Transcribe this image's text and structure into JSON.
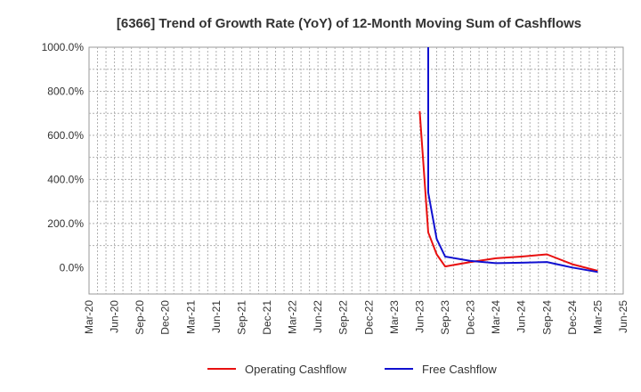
{
  "chart_data": {
    "type": "line",
    "title": "[6366]  Trend of Growth Rate (YoY) of 12-Month Moving Sum of Cashflows",
    "xlabel": "",
    "ylabel": "",
    "ylim": [
      -120,
      1000
    ],
    "y_ticks": [
      0,
      200,
      400,
      600,
      800,
      1000
    ],
    "y_tick_labels": [
      "0.0%",
      "200.0%",
      "400.0%",
      "600.0%",
      "800.0%",
      "1000.0%"
    ],
    "x_tick_labels": [
      "Mar-20",
      "Jun-20",
      "Sep-20",
      "Dec-20",
      "Mar-21",
      "Jun-21",
      "Sep-21",
      "Dec-21",
      "Mar-22",
      "Jun-22",
      "Sep-22",
      "Dec-22",
      "Mar-23",
      "Jun-23",
      "Sep-23",
      "Dec-23",
      "Mar-24",
      "Jun-24",
      "Sep-24",
      "Dec-24",
      "Mar-25",
      "Jun-25"
    ],
    "grid": true,
    "legend_position": "bottom",
    "series": [
      {
        "name": "Operating Cashflow",
        "color": "#e81010",
        "points": [
          {
            "x": "Jun-23",
            "y": 710
          },
          {
            "x": "Jul-23",
            "y": 160
          },
          {
            "x": "Aug-23",
            "y": 60
          },
          {
            "x": "Sep-23",
            "y": 5
          },
          {
            "x": "Dec-23",
            "y": 25
          },
          {
            "x": "Mar-24",
            "y": 42
          },
          {
            "x": "Jun-24",
            "y": 50
          },
          {
            "x": "Sep-24",
            "y": 60
          },
          {
            "x": "Dec-24",
            "y": 15
          },
          {
            "x": "Mar-25",
            "y": -15
          }
        ]
      },
      {
        "name": "Free Cashflow",
        "color": "#1010d0",
        "points": [
          {
            "x": "Jul-23",
            "y": 1000
          },
          {
            "x": "Jul-23",
            "y": 340
          },
          {
            "x": "Aug-23",
            "y": 130
          },
          {
            "x": "Sep-23",
            "y": 50
          },
          {
            "x": "Dec-23",
            "y": 30
          },
          {
            "x": "Mar-24",
            "y": 20
          },
          {
            "x": "Jun-24",
            "y": 22
          },
          {
            "x": "Sep-24",
            "y": 25
          },
          {
            "x": "Dec-24",
            "y": 0
          },
          {
            "x": "Mar-25",
            "y": -20
          }
        ]
      }
    ]
  }
}
